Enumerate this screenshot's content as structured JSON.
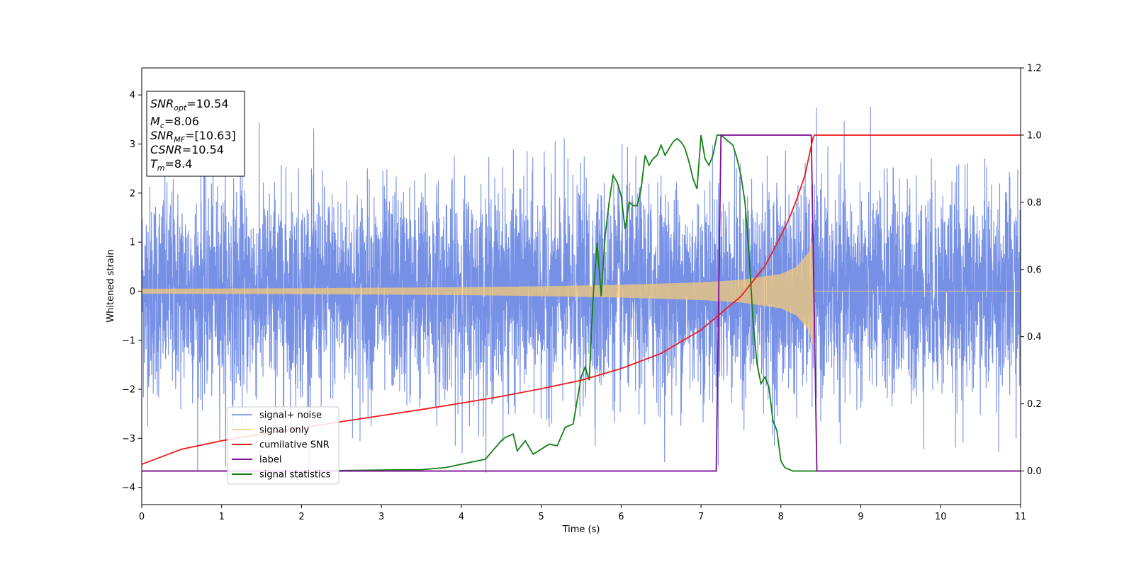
{
  "chart_data": {
    "type": "line",
    "xlabel": "Time (s)",
    "ylabel": "Whitened strain",
    "xlim": [
      0,
      11
    ],
    "ylim": [
      -4.35,
      4.55
    ],
    "y2lim": [
      -0.1,
      1.2
    ],
    "grid": false,
    "x_ticks": [
      0,
      1,
      2,
      3,
      4,
      5,
      6,
      7,
      8,
      9,
      10,
      11
    ],
    "x_tick_labels": [
      "0",
      "1",
      "2",
      "3",
      "4",
      "5",
      "6",
      "7",
      "8",
      "9",
      "10",
      "11"
    ],
    "y_ticks": [
      -4,
      -3,
      -2,
      -1,
      0,
      1,
      2,
      3,
      4
    ],
    "y_tick_labels": [
      "−4",
      "−3",
      "−2",
      "−1",
      "0",
      "1",
      "2",
      "3",
      "4"
    ],
    "y2_ticks": [
      0.0,
      0.2,
      0.4,
      0.6,
      0.8,
      1.0,
      1.2
    ],
    "y2_tick_labels": [
      "0.0",
      "0.2",
      "0.4",
      "0.6",
      "0.8",
      "1.0",
      "1.2"
    ],
    "legend_position": "lower-left",
    "annotation_box": {
      "position": "top-left",
      "lines": [
        {
          "main": "SNR",
          "sub": "opt",
          "value": "=10.54"
        },
        {
          "main": "M",
          "sub": "c",
          "value": "=8.06"
        },
        {
          "main": "SNR",
          "sub": "MF",
          "value": "=[10.63]"
        },
        {
          "main": "CSNR",
          "sub": "",
          "value": "=10.54"
        },
        {
          "main": "T",
          "sub": "m",
          "value": "=8.4"
        }
      ]
    },
    "series": [
      {
        "name": "signal+ noise",
        "axis": "left",
        "color": "#6a87e4",
        "kind": "noise",
        "description_range": [
          -3.7,
          4.2
        ],
        "typical_amplitude": 2.2
      },
      {
        "name": "signal only",
        "axis": "left",
        "color": "#f5c977",
        "kind": "chirp",
        "amplitude_profile": {
          "x": [
            0,
            2,
            4,
            5,
            6,
            7,
            7.5,
            8,
            8.2,
            8.35,
            8.4,
            8.42,
            11
          ],
          "y": [
            0.05,
            0.06,
            0.08,
            0.1,
            0.13,
            0.18,
            0.23,
            0.35,
            0.5,
            0.8,
            1.1,
            0,
            0
          ]
        }
      },
      {
        "name": "cumilative SNR",
        "axis": "right",
        "color": "#ee1c1c",
        "x": [
          0,
          0.5,
          1,
          1.5,
          2,
          2.5,
          3,
          3.5,
          4,
          4.5,
          5,
          5.5,
          6,
          6.5,
          7,
          7.5,
          7.8,
          8,
          8.1,
          8.2,
          8.3,
          8.4,
          8.42,
          11
        ],
        "y": [
          0.02,
          0.065,
          0.09,
          0.11,
          0.128,
          0.147,
          0.165,
          0.183,
          0.202,
          0.222,
          0.245,
          0.27,
          0.305,
          0.35,
          0.42,
          0.52,
          0.61,
          0.7,
          0.75,
          0.81,
          0.88,
          0.99,
          1.0,
          1.0
        ]
      },
      {
        "name": "label",
        "axis": "right",
        "color": "#7f0d94",
        "x": [
          0,
          7.19,
          7.25,
          8.38,
          8.45,
          11
        ],
        "y": [
          0,
          0,
          1,
          1,
          0,
          0
        ]
      },
      {
        "name": "signal statistics",
        "axis": "right",
        "color": "#148014",
        "x": [
          0,
          1,
          2,
          3,
          3.5,
          3.8,
          4,
          4.2,
          4.3,
          4.5,
          4.55,
          4.65,
          4.7,
          4.8,
          4.9,
          5.0,
          5.1,
          5.2,
          5.3,
          5.4,
          5.5,
          5.55,
          5.6,
          5.65,
          5.7,
          5.75,
          5.8,
          5.85,
          5.9,
          5.95,
          6.0,
          6.05,
          6.1,
          6.15,
          6.2,
          6.25,
          6.3,
          6.35,
          6.4,
          6.45,
          6.5,
          6.55,
          6.6,
          6.65,
          6.7,
          6.75,
          6.8,
          6.85,
          6.9,
          6.95,
          7.0,
          7.05,
          7.1,
          7.15,
          7.2,
          7.25,
          7.3,
          7.35,
          7.4,
          7.45,
          7.5,
          7.55,
          7.6,
          7.65,
          7.7,
          7.75,
          7.8,
          7.85,
          7.9,
          7.95,
          8.0,
          8.05,
          8.1,
          8.15,
          8.2,
          8.25,
          8.3,
          8.35,
          8.4,
          8.45,
          8.5,
          8.6,
          9,
          10,
          11
        ],
        "y": [
          0.0,
          0.0,
          0.0,
          0.003,
          0.004,
          0.01,
          0.02,
          0.03,
          0.035,
          0.09,
          0.1,
          0.11,
          0.06,
          0.09,
          0.05,
          0.065,
          0.08,
          0.075,
          0.13,
          0.14,
          0.28,
          0.31,
          0.27,
          0.52,
          0.68,
          0.52,
          0.7,
          0.8,
          0.88,
          0.86,
          0.82,
          0.72,
          0.8,
          0.79,
          0.79,
          0.84,
          0.94,
          0.91,
          0.93,
          0.94,
          0.97,
          0.94,
          0.96,
          0.98,
          0.99,
          0.98,
          0.96,
          0.92,
          0.87,
          0.84,
          1.0,
          0.93,
          0.91,
          0.94,
          1.0,
          1.0,
          0.99,
          0.98,
          0.97,
          0.93,
          0.88,
          0.8,
          0.65,
          0.45,
          0.32,
          0.26,
          0.28,
          0.25,
          0.15,
          0.12,
          0.03,
          0.01,
          0.005,
          0.0,
          0.0,
          0.0,
          0.0,
          0.0,
          0.0,
          0.0,
          0.0,
          0.0,
          0.0,
          0.0,
          0.0
        ]
      }
    ]
  }
}
